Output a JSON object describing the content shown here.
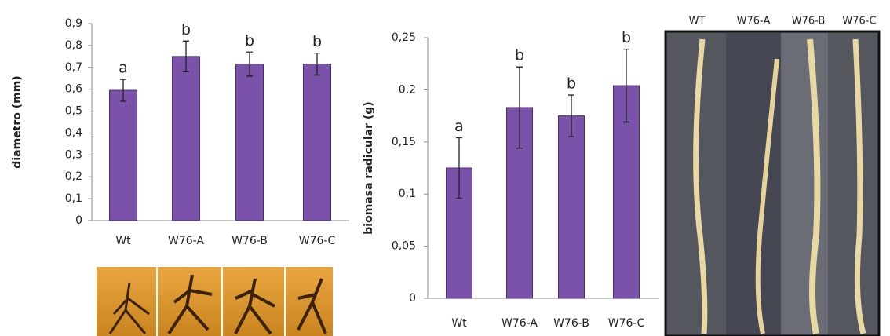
{
  "chart_data": [
    {
      "type": "bar",
      "y_label": "diametro (mm)",
      "categories": [
        "Wt",
        "W76-A",
        "W76-B",
        "W76-C"
      ],
      "values": [
        0.595,
        0.75,
        0.715,
        0.715
      ],
      "errors": [
        0.05,
        0.07,
        0.055,
        0.05
      ],
      "annotations": [
        "a",
        "b",
        "b",
        "b"
      ],
      "color": "#7a52aa",
      "ylim": [
        0,
        0.9
      ],
      "yticks": [
        0,
        {
          "value": 0.1,
          "label": "0,1"
        },
        {
          "value": 0.2,
          "label": "0,2"
        },
        {
          "value": 0.3,
          "label": "0,3"
        },
        {
          "value": 0.4,
          "label": "0,4"
        },
        {
          "value": 0.5,
          "label": "0,5"
        },
        {
          "value": 0.6,
          "label": "0,6"
        },
        {
          "value": 0.7,
          "label": "0,7"
        },
        {
          "value": 0.8,
          "label": "0,8"
        },
        {
          "value": 0.9,
          "label": "0,9"
        }
      ]
    },
    {
      "type": "bar",
      "y_label": "biomasa radicular (g)",
      "categories": [
        "Wt",
        "W76-A",
        "W76-B",
        "W76-C"
      ],
      "values": [
        0.125,
        0.183,
        0.175,
        0.204
      ],
      "errors": [
        0.029,
        0.039,
        0.02,
        0.035
      ],
      "annotations": [
        "a",
        "b",
        "b",
        "b"
      ],
      "color": "#7a52aa",
      "ylim": [
        0,
        0.25
      ],
      "yticks": [
        0,
        {
          "value": 0.05,
          "label": "0,05"
        },
        {
          "value": 0.1,
          "label": "0,1"
        },
        {
          "value": 0.15,
          "label": "0,15"
        },
        {
          "value": 0.2,
          "label": "0,2"
        },
        {
          "value": 0.25,
          "label": "0,25"
        }
      ]
    }
  ],
  "photo_labels": [
    "WT",
    "W76-A",
    "W76-B",
    "W76-C"
  ]
}
